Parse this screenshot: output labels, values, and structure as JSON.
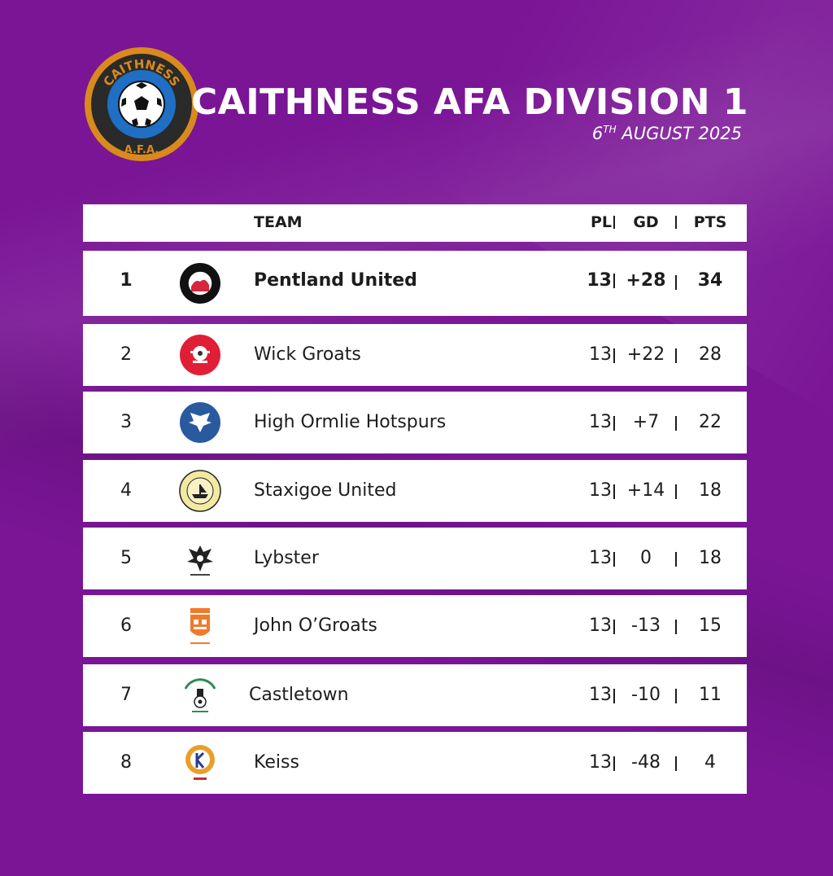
{
  "header": {
    "logo_text_top": "CAITHNESS",
    "logo_text_bottom": "A.F.A.",
    "title": "CAITHNESS AFA DIVISION 1",
    "date_day": "6",
    "date_suffix": "TH",
    "date_rest": " AUGUST 2025"
  },
  "columns": {
    "team": "TEAM",
    "pl": "PL",
    "gd": "GD",
    "pts": "PTS"
  },
  "colors": {
    "background": "#7a1596",
    "row": "#ffffff",
    "logo_ring": "#d98a1c",
    "logo_inner": "#1f6fc4"
  },
  "table": [
    {
      "pos": "1",
      "team": "Pentland United",
      "pl": "13",
      "gd": "+28",
      "pts": "34",
      "crest": "pentland-united-crest-icon"
    },
    {
      "pos": "2",
      "team": "Wick Groats",
      "pl": "13",
      "gd": "+22",
      "pts": "28",
      "crest": "wick-groats-crest-icon"
    },
    {
      "pos": "3",
      "team": "High Ormlie Hotspurs",
      "pl": "13",
      "gd": "+7",
      "pts": "22",
      "crest": "high-ormlie-hotspurs-crest-icon"
    },
    {
      "pos": "4",
      "team": "Staxigoe United",
      "pl": "13",
      "gd": "+14",
      "pts": "18",
      "crest": "staxigoe-united-crest-icon"
    },
    {
      "pos": "5",
      "team": "Lybster",
      "pl": "13",
      "gd": "0",
      "pts": "18",
      "crest": "lybster-crest-icon"
    },
    {
      "pos": "6",
      "team": "John O’Groats",
      "pl": "13",
      "gd": "-13",
      "pts": "15",
      "crest": "john-ogroats-crest-icon"
    },
    {
      "pos": "7",
      "team": "Castletown",
      "pl": "13",
      "gd": "-10",
      "pts": "11",
      "crest": "castletown-crest-icon"
    },
    {
      "pos": "8",
      "team": "Keiss",
      "pl": "13",
      "gd": "-48",
      "pts": "4",
      "crest": "keiss-crest-icon"
    }
  ]
}
